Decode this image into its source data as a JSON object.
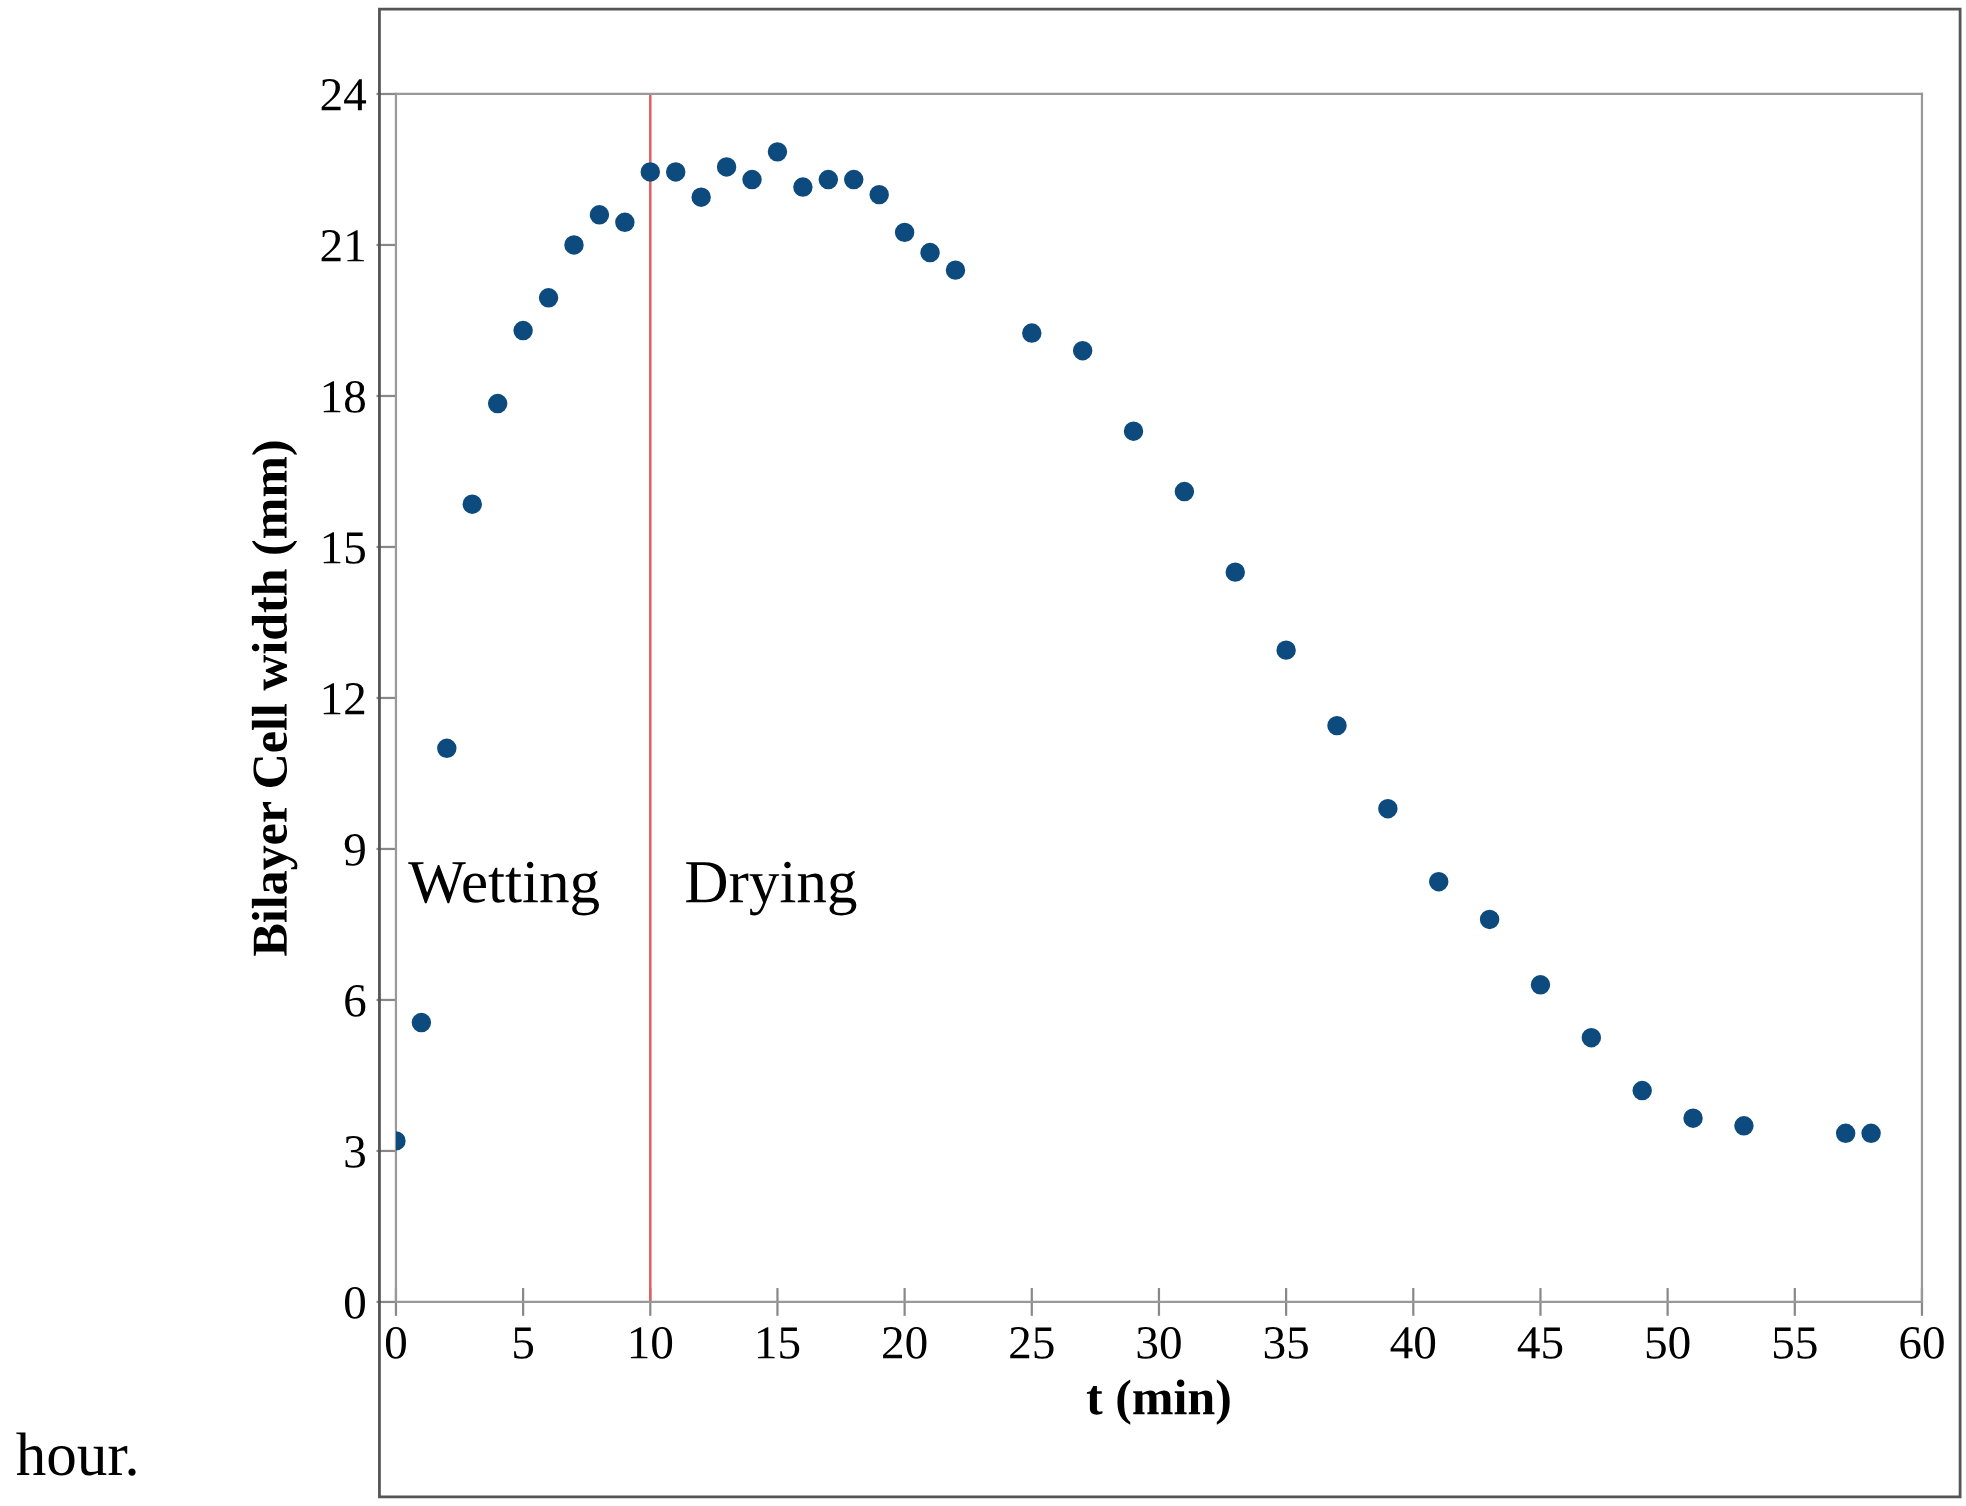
{
  "chart_data": {
    "type": "scatter",
    "xlabel": "t (min)",
    "ylabel": "Bilayer Cell width (mm)",
    "x": [
      0,
      1,
      2,
      3,
      4,
      5,
      6,
      7,
      8,
      9,
      10,
      11,
      12,
      13,
      14,
      15,
      16,
      17,
      18,
      19,
      20,
      21,
      22,
      25,
      27,
      29,
      31,
      33,
      35,
      37,
      39,
      41,
      43,
      45,
      47,
      49,
      51,
      53,
      57,
      58
    ],
    "series": [
      {
        "color": "#0d4a7e",
        "values": [
          3.2,
          5.55,
          11.0,
          15.85,
          17.85,
          19.3,
          19.95,
          21.0,
          21.6,
          21.45,
          22.45,
          22.45,
          21.95,
          22.55,
          22.3,
          22.85,
          22.15,
          22.3,
          22.3,
          22.0,
          21.25,
          20.85,
          20.5,
          19.25,
          18.9,
          17.3,
          16.1,
          14.5,
          12.95,
          11.45,
          9.8,
          8.35,
          7.6,
          6.3,
          5.25,
          4.2,
          3.65,
          3.5,
          3.35,
          3.35
        ]
      }
    ],
    "xlim": [
      0,
      60
    ],
    "xticks": [
      0,
      5,
      10,
      15,
      20,
      25,
      30,
      35,
      40,
      45,
      50,
      55,
      60
    ],
    "ylim": [
      0,
      24
    ],
    "yticks": [
      0,
      3,
      6,
      9,
      12,
      15,
      18,
      21,
      24
    ],
    "marker": "circle",
    "grid": false,
    "legend": false,
    "ref_lines": [
      {
        "axis": "x",
        "value": 10,
        "color": "#e06060"
      }
    ],
    "annotations": [
      "Wetting",
      "Drying",
      "hour."
    ]
  }
}
